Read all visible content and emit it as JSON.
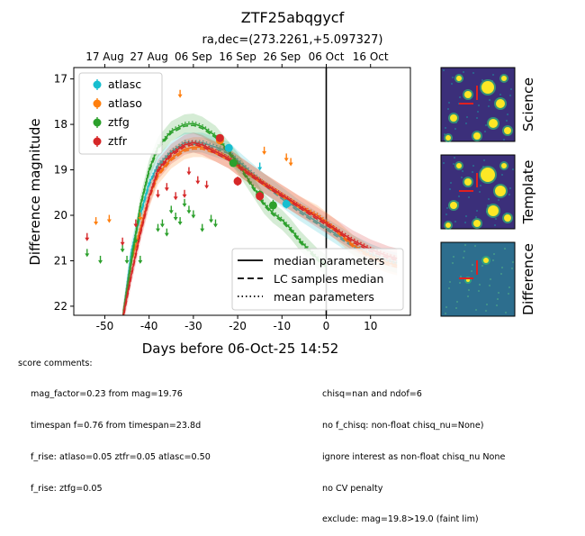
{
  "chart_data": {
    "type": "scatter",
    "title": "ZTF25abqgycf",
    "subtitle": "ra,dec=(273.2261,+5.097327)",
    "xlabel": "Days before 06-Oct-25 14:52",
    "ylabel": "Difference magnitude",
    "xlim": [
      -57,
      19
    ],
    "ylim": [
      22.2,
      16.75
    ],
    "x_ticks": [
      -50,
      -40,
      -30,
      -20,
      -10,
      0,
      10
    ],
    "y_ticks": [
      17,
      18,
      19,
      20,
      21,
      22
    ],
    "top_axis_labels": [
      {
        "day": -50,
        "label": "17 Aug"
      },
      {
        "day": -40,
        "label": "27 Aug"
      },
      {
        "day": -30,
        "label": "06 Sep"
      },
      {
        "day": -20,
        "label": "16 Sep"
      },
      {
        "day": -10,
        "label": "26 Sep"
      },
      {
        "day": 0,
        "label": "06 Oct"
      },
      {
        "day": 10,
        "label": "16 Oct"
      }
    ],
    "reference_line_x": 0,
    "series": [
      {
        "name": "atlasc",
        "color": "#17becf",
        "detections": [
          {
            "x": -22,
            "y": 18.52,
            "err": 0.06
          },
          {
            "x": -9,
            "y": 19.75,
            "err": 0.1
          }
        ],
        "upper_limits": [
          {
            "x": -15,
            "y": 18.9
          }
        ],
        "median_curve": [
          [
            -46,
            22.3
          ],
          [
            -44,
            20.8
          ],
          [
            -42,
            20.0
          ],
          [
            -40,
            19.3
          ],
          [
            -38,
            18.9
          ],
          [
            -35,
            18.6
          ],
          [
            -32,
            18.4
          ],
          [
            -30,
            18.4
          ],
          [
            -28,
            18.4
          ],
          [
            -25,
            18.5
          ],
          [
            -22,
            18.6
          ],
          [
            -20,
            18.8
          ],
          [
            -17,
            19.05
          ],
          [
            -14,
            19.3
          ],
          [
            -10,
            19.6
          ],
          [
            -6,
            19.9
          ],
          [
            -2,
            20.15
          ],
          [
            2,
            20.4
          ],
          [
            6,
            20.65
          ],
          [
            10,
            20.85
          ],
          [
            14,
            21.0
          ],
          [
            16,
            21.05
          ]
        ]
      },
      {
        "name": "atlaso",
        "color": "#ff7f0e",
        "detections": [
          {
            "x": -24,
            "y": 18.35,
            "err": 0.06
          }
        ],
        "upper_limits": [
          {
            "x": -52,
            "y": 20.1
          },
          {
            "x": -49,
            "y": 20.05
          },
          {
            "x": -42,
            "y": 20.0
          },
          {
            "x": -33,
            "y": 17.3
          },
          {
            "x": -14,
            "y": 18.55
          },
          {
            "x": -9,
            "y": 18.7
          },
          {
            "x": -8,
            "y": 18.8
          }
        ],
        "median_curve": [
          [
            -46,
            22.3
          ],
          [
            -44,
            21.0
          ],
          [
            -42,
            20.3
          ],
          [
            -40,
            19.6
          ],
          [
            -38,
            19.1
          ],
          [
            -35,
            18.75
          ],
          [
            -32,
            18.55
          ],
          [
            -30,
            18.5
          ],
          [
            -28,
            18.5
          ],
          [
            -25,
            18.6
          ],
          [
            -22,
            18.75
          ],
          [
            -20,
            18.9
          ],
          [
            -17,
            19.1
          ],
          [
            -14,
            19.3
          ],
          [
            -10,
            19.55
          ],
          [
            -6,
            19.8
          ],
          [
            -2,
            20.0
          ],
          [
            2,
            20.3
          ],
          [
            6,
            20.65
          ],
          [
            10,
            20.9
          ],
          [
            14,
            21.05
          ],
          [
            16,
            21.1
          ]
        ]
      },
      {
        "name": "ztfg",
        "color": "#2ca02c",
        "detections": [
          {
            "x": -21,
            "y": 18.85,
            "err": 0.06
          },
          {
            "x": -15,
            "y": 19.55,
            "err": 0.1
          },
          {
            "x": -12,
            "y": 19.78,
            "err": 0.12
          }
        ],
        "upper_limits": [
          {
            "x": -54,
            "y": 20.8
          },
          {
            "x": -51,
            "y": 20.95
          },
          {
            "x": -46,
            "y": 20.7
          },
          {
            "x": -45,
            "y": 20.95
          },
          {
            "x": -43,
            "y": 20.5
          },
          {
            "x": -42,
            "y": 20.95
          },
          {
            "x": -38,
            "y": 20.25
          },
          {
            "x": -37,
            "y": 20.15
          },
          {
            "x": -36,
            "y": 20.35
          },
          {
            "x": -35,
            "y": 19.85
          },
          {
            "x": -34,
            "y": 20.0
          },
          {
            "x": -33,
            "y": 20.1
          },
          {
            "x": -32,
            "y": 19.7
          },
          {
            "x": -31,
            "y": 19.85
          },
          {
            "x": -30,
            "y": 19.95
          },
          {
            "x": -28,
            "y": 20.25
          },
          {
            "x": -26,
            "y": 20.05
          },
          {
            "x": -25,
            "y": 20.15
          }
        ],
        "median_curve": [
          [
            -46,
            22.3
          ],
          [
            -44,
            21.0
          ],
          [
            -42,
            19.8
          ],
          [
            -40,
            19.0
          ],
          [
            -38,
            18.5
          ],
          [
            -35,
            18.15
          ],
          [
            -32,
            18.0
          ],
          [
            -30,
            17.98
          ],
          [
            -28,
            18.05
          ],
          [
            -25,
            18.25
          ],
          [
            -22,
            18.6
          ],
          [
            -20,
            18.85
          ],
          [
            -17,
            19.3
          ],
          [
            -14,
            19.75
          ],
          [
            -12,
            19.95
          ],
          [
            -10,
            20.1
          ],
          [
            -8,
            20.3
          ],
          [
            -6,
            20.55
          ],
          [
            -4,
            20.75
          ],
          [
            -2,
            20.95
          ],
          [
            0,
            21.1
          ]
        ]
      },
      {
        "name": "ztfr",
        "color": "#d62728",
        "detections": [
          {
            "x": -24,
            "y": 18.3,
            "err": 0.06
          },
          {
            "x": -20,
            "y": 19.25,
            "err": 0.1
          },
          {
            "x": -15,
            "y": 19.58,
            "err": 0.1
          }
        ],
        "upper_limits": [
          {
            "x": -54,
            "y": 20.45
          },
          {
            "x": -46,
            "y": 20.55
          },
          {
            "x": -43,
            "y": 20.15
          },
          {
            "x": -38,
            "y": 19.5
          },
          {
            "x": -36,
            "y": 19.35
          },
          {
            "x": -34,
            "y": 19.55
          },
          {
            "x": -32,
            "y": 19.5
          },
          {
            "x": -31,
            "y": 19.0
          },
          {
            "x": -29,
            "y": 19.2
          },
          {
            "x": -27,
            "y": 19.3
          }
        ],
        "median_curve": [
          [
            -46,
            22.3
          ],
          [
            -44,
            21.3
          ],
          [
            -42,
            20.4
          ],
          [
            -40,
            19.6
          ],
          [
            -38,
            19.0
          ],
          [
            -35,
            18.65
          ],
          [
            -32,
            18.45
          ],
          [
            -30,
            18.4
          ],
          [
            -28,
            18.45
          ],
          [
            -25,
            18.6
          ],
          [
            -22,
            18.75
          ],
          [
            -20,
            18.9
          ],
          [
            -17,
            19.1
          ],
          [
            -14,
            19.3
          ],
          [
            -10,
            19.55
          ],
          [
            -6,
            19.8
          ],
          [
            -2,
            20.05
          ],
          [
            2,
            20.3
          ],
          [
            6,
            20.55
          ],
          [
            10,
            20.75
          ],
          [
            14,
            20.9
          ],
          [
            16,
            20.95
          ]
        ]
      }
    ],
    "legend_markers": [
      "atlasc",
      "atlaso",
      "ztfg",
      "ztfr"
    ],
    "legend_lines": [
      {
        "label": "median parameters",
        "style": "solid"
      },
      {
        "label": "LC samples median",
        "style": "dashed"
      },
      {
        "label": "mean parameters",
        "style": "dotted"
      }
    ]
  },
  "cutouts": [
    {
      "label": "Science"
    },
    {
      "label": "Template"
    },
    {
      "label": "Difference"
    }
  ],
  "comments": {
    "heading": "score comments:",
    "left_lines": [
      "mag_factor=0.23 from mag=19.76",
      "timespan f=0.76 from timespan=23.8d",
      "f_rise: atlaso=0.05 ztfr=0.05 atlasc=0.50",
      "f_rise: ztfg=0.05"
    ],
    "right_lines": [
      "chisq=nan and ndof=6",
      "no f_chisq: non-float chisq_nu=None)",
      "ignore interest as non-float chisq_nu None",
      "no CV penalty",
      "exclude: mag=19.8>19.0 (faint lim)"
    ]
  },
  "colors": {
    "atlasc": "#17becf",
    "atlaso": "#ff7f0e",
    "ztfg": "#2ca02c",
    "ztfr": "#d62728",
    "cutout_dark": "#3b2f7a",
    "cutout_mid": "#2d6e8e",
    "cutout_bright": "#fde725"
  }
}
